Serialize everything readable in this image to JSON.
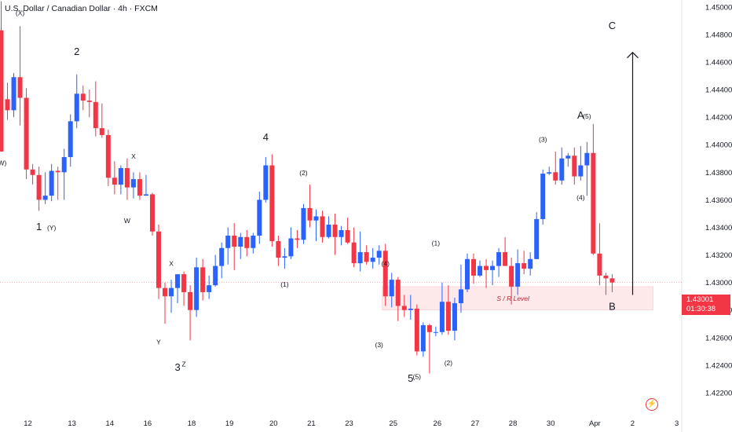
{
  "header": {
    "title": "U.S. Dollar / Canadian Dollar · 4h · FXCM"
  },
  "price_label": {
    "price": "1.43001",
    "countdown": "01:30:38",
    "color": "#f23645"
  },
  "colors": {
    "bull": "#2962ff",
    "bear": "#f23645",
    "zone": "#fde8ea"
  },
  "icons": {
    "logo": "lightning-icon"
  },
  "chart_data": {
    "type": "candlestick",
    "ylim": [
      1.422,
      1.4505
    ],
    "y_ticks": [
      "1.45000",
      "1.44800",
      "1.44600",
      "1.44400",
      "1.44200",
      "1.44000",
      "1.43800",
      "1.43600",
      "1.43400",
      "1.43200",
      "1.43000",
      "1.42800",
      "1.42600",
      "1.42400",
      "1.42200"
    ],
    "y_tick_values": [
      1.45,
      1.448,
      1.446,
      1.444,
      1.442,
      1.44,
      1.438,
      1.436,
      1.434,
      1.432,
      1.43,
      1.428,
      1.426,
      1.424,
      1.422
    ],
    "x_ticks": [
      {
        "label": "12",
        "bar": 2
      },
      {
        "label": "13",
        "bar": 9
      },
      {
        "label": "14",
        "bar": 15
      },
      {
        "label": "16",
        "bar": 21
      },
      {
        "label": "18",
        "bar": 28
      },
      {
        "label": "19",
        "bar": 34
      },
      {
        "label": "20",
        "bar": 41
      },
      {
        "label": "21",
        "bar": 47
      },
      {
        "label": "23",
        "bar": 53
      },
      {
        "label": "25",
        "bar": 60
      },
      {
        "label": "26",
        "bar": 67
      },
      {
        "label": "27",
        "bar": 73
      },
      {
        "label": "28",
        "bar": 79
      },
      {
        "label": "30",
        "bar": 85
      },
      {
        "label": "Apr",
        "bar": 92
      },
      {
        "label": "2",
        "bar": 98
      },
      {
        "label": "3",
        "bar": 105
      }
    ],
    "candles": [
      [
        1.4483,
        1.4504,
        1.4395,
        1.4395
      ],
      [
        1.4433,
        1.4445,
        1.4418,
        1.4425
      ],
      [
        1.4425,
        1.4452,
        1.442,
        1.4449
      ],
      [
        1.4449,
        1.4486,
        1.4414,
        1.4434
      ],
      [
        1.4434,
        1.4441,
        1.4375,
        1.4382
      ],
      [
        1.4382,
        1.4386,
        1.4371,
        1.4378
      ],
      [
        1.4378,
        1.4384,
        1.4352,
        1.436
      ],
      [
        1.436,
        1.438,
        1.4357,
        1.4363
      ],
      [
        1.4363,
        1.4386,
        1.4359,
        1.4381
      ],
      [
        1.4381,
        1.4384,
        1.436,
        1.438
      ],
      [
        1.438,
        1.4397,
        1.436,
        1.4391
      ],
      [
        1.4391,
        1.4422,
        1.4384,
        1.4417
      ],
      [
        1.4417,
        1.4451,
        1.4412,
        1.4437
      ],
      [
        1.4437,
        1.4443,
        1.4425,
        1.4432
      ],
      [
        1.4432,
        1.444,
        1.442,
        1.4431
      ],
      [
        1.4431,
        1.4446,
        1.4406,
        1.4412
      ],
      [
        1.4412,
        1.443,
        1.4405,
        1.4407
      ],
      [
        1.4407,
        1.4411,
        1.437,
        1.4376
      ],
      [
        1.4376,
        1.4388,
        1.4364,
        1.4371
      ],
      [
        1.4371,
        1.4385,
        1.4364,
        1.4383
      ],
      [
        1.4383,
        1.439,
        1.436,
        1.4369
      ],
      [
        1.4369,
        1.438,
        1.4361,
        1.4375
      ],
      [
        1.4375,
        1.438,
        1.436,
        1.4363
      ],
      [
        1.4363,
        1.4378,
        1.4363,
        1.4364
      ],
      [
        1.4364,
        1.4365,
        1.4334,
        1.4337
      ],
      [
        1.4337,
        1.4342,
        1.4288,
        1.4296
      ],
      [
        1.4296,
        1.43,
        1.427,
        1.429
      ],
      [
        1.429,
        1.4302,
        1.4278,
        1.4296
      ],
      [
        1.4296,
        1.4305,
        1.4285,
        1.4306
      ],
      [
        1.4306,
        1.4308,
        1.4283,
        1.4293
      ],
      [
        1.4293,
        1.4298,
        1.4258,
        1.428
      ],
      [
        1.428,
        1.4318,
        1.4275,
        1.4311
      ],
      [
        1.4311,
        1.4317,
        1.4287,
        1.4293
      ],
      [
        1.4293,
        1.4305,
        1.4288,
        1.4298
      ],
      [
        1.4298,
        1.432,
        1.4297,
        1.4312
      ],
      [
        1.4312,
        1.4329,
        1.4303,
        1.4325
      ],
      [
        1.4325,
        1.434,
        1.4313,
        1.4334
      ],
      [
        1.4334,
        1.4343,
        1.4309,
        1.4326
      ],
      [
        1.4326,
        1.4336,
        1.4317,
        1.4333
      ],
      [
        1.4333,
        1.4338,
        1.4319,
        1.4325
      ],
      [
        1.4325,
        1.4336,
        1.4321,
        1.4334
      ],
      [
        1.4334,
        1.4366,
        1.4328,
        1.436
      ],
      [
        1.436,
        1.4391,
        1.4358,
        1.4385
      ],
      [
        1.4385,
        1.4393,
        1.4326,
        1.433
      ],
      [
        1.433,
        1.4334,
        1.4312,
        1.4318
      ],
      [
        1.4318,
        1.4325,
        1.431,
        1.4319
      ],
      [
        1.4319,
        1.434,
        1.4317,
        1.4332
      ],
      [
        1.4332,
        1.4338,
        1.4325,
        1.4331
      ],
      [
        1.4331,
        1.4357,
        1.4328,
        1.4354
      ],
      [
        1.4354,
        1.4371,
        1.434,
        1.4345
      ],
      [
        1.4345,
        1.4353,
        1.433,
        1.4348
      ],
      [
        1.4348,
        1.4352,
        1.4329,
        1.4333
      ],
      [
        1.4333,
        1.4348,
        1.4332,
        1.4342
      ],
      [
        1.4342,
        1.435,
        1.432,
        1.4333
      ],
      [
        1.4333,
        1.4341,
        1.4327,
        1.4338
      ],
      [
        1.4338,
        1.4347,
        1.4328,
        1.4329
      ],
      [
        1.4329,
        1.434,
        1.4311,
        1.4314
      ],
      [
        1.4314,
        1.4337,
        1.4308,
        1.4322
      ],
      [
        1.4322,
        1.4327,
        1.4313,
        1.4315
      ],
      [
        1.4315,
        1.4325,
        1.431,
        1.4318
      ],
      [
        1.4318,
        1.4327,
        1.4313,
        1.4323
      ],
      [
        1.4323,
        1.4328,
        1.4283,
        1.429
      ],
      [
        1.429,
        1.4307,
        1.4282,
        1.4302
      ],
      [
        1.4302,
        1.4304,
        1.4272,
        1.4283
      ],
      [
        1.4283,
        1.4291,
        1.4275,
        1.428
      ],
      [
        1.428,
        1.4291,
        1.4273,
        1.4281
      ],
      [
        1.4281,
        1.4284,
        1.4247,
        1.425
      ],
      [
        1.425,
        1.4271,
        1.4246,
        1.4269
      ],
      [
        1.4269,
        1.427,
        1.4234,
        1.4264
      ],
      [
        1.4264,
        1.4268,
        1.4261,
        1.4264
      ],
      [
        1.4264,
        1.43,
        1.4262,
        1.4286
      ],
      [
        1.4286,
        1.4298,
        1.4262,
        1.4265
      ],
      [
        1.4265,
        1.4289,
        1.4258,
        1.4285
      ],
      [
        1.4285,
        1.4313,
        1.4278,
        1.4295
      ],
      [
        1.4295,
        1.4321,
        1.4293,
        1.4317
      ],
      [
        1.4317,
        1.4321,
        1.4299,
        1.4305
      ],
      [
        1.4305,
        1.4316,
        1.4304,
        1.4312
      ],
      [
        1.4312,
        1.4317,
        1.4296,
        1.4309
      ],
      [
        1.4309,
        1.4316,
        1.4298,
        1.4312
      ],
      [
        1.4312,
        1.4325,
        1.4304,
        1.4322
      ],
      [
        1.4322,
        1.4333,
        1.4312,
        1.4312
      ],
      [
        1.4312,
        1.4318,
        1.4284,
        1.4297
      ],
      [
        1.4297,
        1.4324,
        1.4291,
        1.4314
      ],
      [
        1.4314,
        1.4323,
        1.4306,
        1.431
      ],
      [
        1.431,
        1.4322,
        1.4305,
        1.4317
      ],
      [
        1.4317,
        1.4351,
        1.4317,
        1.4346
      ],
      [
        1.4346,
        1.4382,
        1.4342,
        1.4379
      ],
      [
        1.4379,
        1.4384,
        1.4378,
        1.438
      ],
      [
        1.438,
        1.4395,
        1.4371,
        1.4374
      ],
      [
        1.4374,
        1.4398,
        1.4371,
        1.439
      ],
      [
        1.439,
        1.4394,
        1.4384,
        1.4392
      ],
      [
        1.4392,
        1.4398,
        1.4371,
        1.4377
      ],
      [
        1.4377,
        1.4399,
        1.4374,
        1.4385
      ],
      [
        1.4385,
        1.4402,
        1.4363,
        1.4394
      ],
      [
        1.4394,
        1.4415,
        1.432,
        1.4321
      ],
      [
        1.4321,
        1.4343,
        1.4298,
        1.4305
      ],
      [
        1.4305,
        1.4307,
        1.4291,
        1.4303
      ],
      [
        1.4303,
        1.4306,
        1.4293,
        1.43
      ]
    ],
    "sr_zone": {
      "low": 1.428,
      "high": 1.4297,
      "from_bar": 61,
      "to_bar": 103,
      "label": "S / R Level"
    },
    "arrow": {
      "bar": 100,
      "from": 1.4291,
      "to": 1.4467
    },
    "wave_labels": [
      {
        "text": "(W)",
        "bar": 0,
        "y": 1.4385,
        "size": "s"
      },
      {
        "text": "(X)",
        "bar": 3,
        "y": 1.4494,
        "size": "s"
      },
      {
        "text": "1",
        "bar": 6,
        "y": 1.4338,
        "size": "l"
      },
      {
        "text": "(Y)",
        "bar": 8,
        "y": 1.4338,
        "size": "s"
      },
      {
        "text": "2",
        "bar": 12,
        "y": 1.4465,
        "size": "l"
      },
      {
        "text": "X",
        "bar": 21,
        "y": 1.439,
        "size": "s"
      },
      {
        "text": "W",
        "bar": 20,
        "y": 1.4343,
        "size": "s"
      },
      {
        "text": "Y",
        "bar": 25,
        "y": 1.4255,
        "size": "s"
      },
      {
        "text": "X",
        "bar": 27,
        "y": 1.4312,
        "size": "s"
      },
      {
        "text": "3",
        "bar": 28,
        "y": 1.4236,
        "size": "l"
      },
      {
        "text": "Z",
        "bar": 29,
        "y": 1.4239,
        "size": "s"
      },
      {
        "text": "4",
        "bar": 42,
        "y": 1.4403,
        "size": "l"
      },
      {
        "text": "(1)",
        "bar": 45,
        "y": 1.4297,
        "size": "s"
      },
      {
        "text": "(2)",
        "bar": 48,
        "y": 1.4378,
        "size": "s"
      },
      {
        "text": "(4)",
        "bar": 61,
        "y": 1.4312,
        "size": "s"
      },
      {
        "text": "(3)",
        "bar": 60,
        "y": 1.4253,
        "size": "s"
      },
      {
        "text": "5",
        "bar": 65,
        "y": 1.4228,
        "size": "l"
      },
      {
        "text": "(5)",
        "bar": 66,
        "y": 1.423,
        "size": "s"
      },
      {
        "text": "(1)",
        "bar": 69,
        "y": 1.4327,
        "size": "s"
      },
      {
        "text": "(2)",
        "bar": 71,
        "y": 1.424,
        "size": "s"
      },
      {
        "text": "(3)",
        "bar": 86,
        "y": 1.4402,
        "size": "s"
      },
      {
        "text": "(4)",
        "bar": 92,
        "y": 1.436,
        "size": "s"
      },
      {
        "text": "A",
        "bar": 92,
        "y": 1.4419,
        "size": "l"
      },
      {
        "text": "(5)",
        "bar": 93,
        "y": 1.4419,
        "size": "s"
      },
      {
        "text": "B",
        "bar": 97,
        "y": 1.428,
        "size": "l"
      },
      {
        "text": "C",
        "bar": 97,
        "y": 1.4484,
        "size": "l"
      }
    ]
  }
}
